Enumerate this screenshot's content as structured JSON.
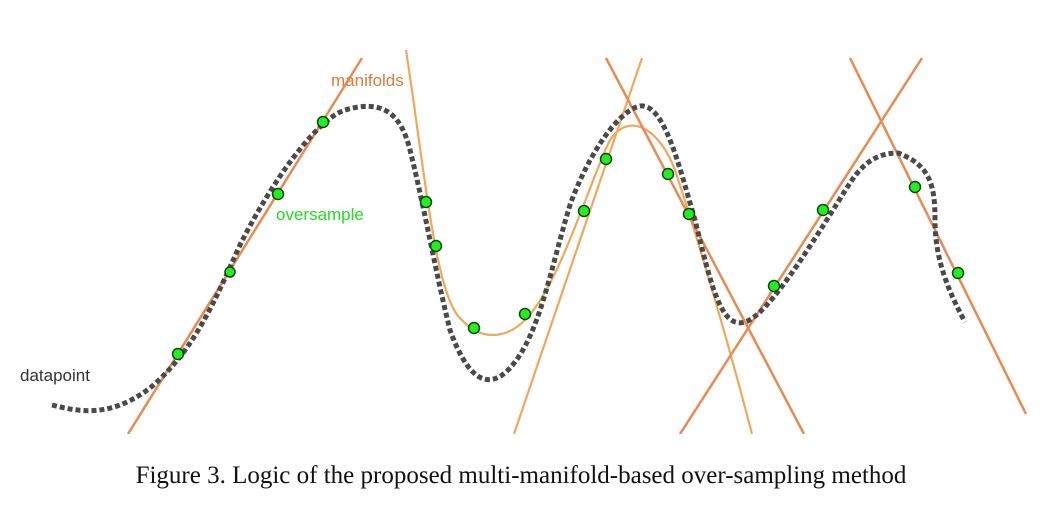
{
  "labels": {
    "manifolds": "manifolds",
    "oversample": "oversample",
    "datapoint": "datapoint"
  },
  "caption": "Figure 3. Logic of the proposed multi-manifold-based over-sampling method",
  "colors": {
    "manifold_dark": "#e98a52",
    "manifold_light": "#f2a75a",
    "datapoint_curve": "#4a4a4a",
    "oversample_fill": "#22ee22",
    "oversample_stroke": "#114411",
    "label_manifolds": "#e07a3c",
    "label_oversample": "#22dd22",
    "label_datapoint": "#333333"
  },
  "icons": {
    "oversample_point": "green-circle-marker",
    "datapoint_line": "dotted-gray-curve",
    "manifold_line": "orange-line"
  }
}
